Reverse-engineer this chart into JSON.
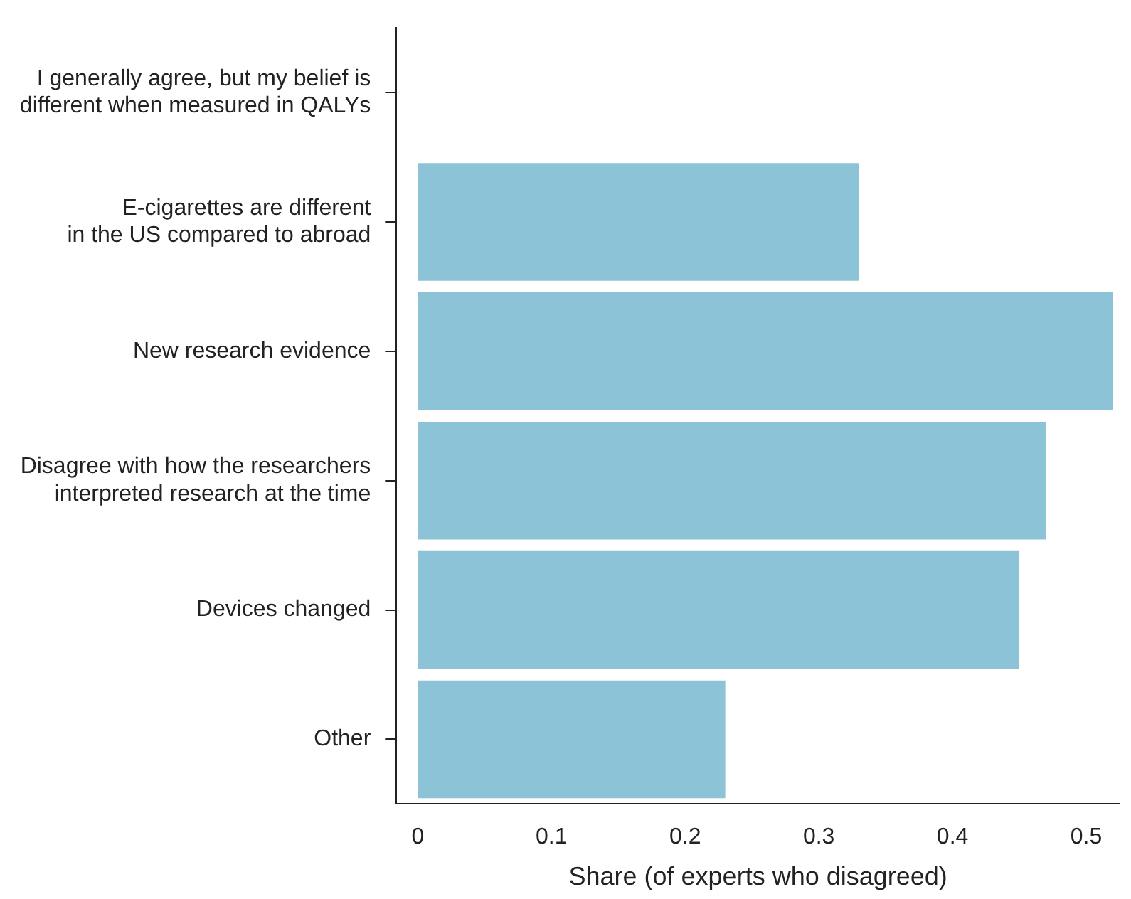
{
  "chart_data": {
    "type": "bar",
    "orientation": "horizontal",
    "xlabel": "Share (of experts who disagreed)",
    "categories": [
      "I generally agree, but my belief is\ndifferent when measured in QALYs",
      "E-cigarettes are different\nin the US compared to abroad",
      "New research evidence",
      "Disagree with how the researchers\ninterpreted research at the time",
      "Devices changed",
      "Other"
    ],
    "values": [
      0,
      0.33,
      0.52,
      0.47,
      0.45,
      0.23
    ],
    "color": "#8cc3d6",
    "xlim": [
      -0.016,
      0.525
    ],
    "xticks": [
      0,
      0.1,
      0.2,
      0.3,
      0.4,
      0.5
    ],
    "grid": false,
    "legend": false
  }
}
